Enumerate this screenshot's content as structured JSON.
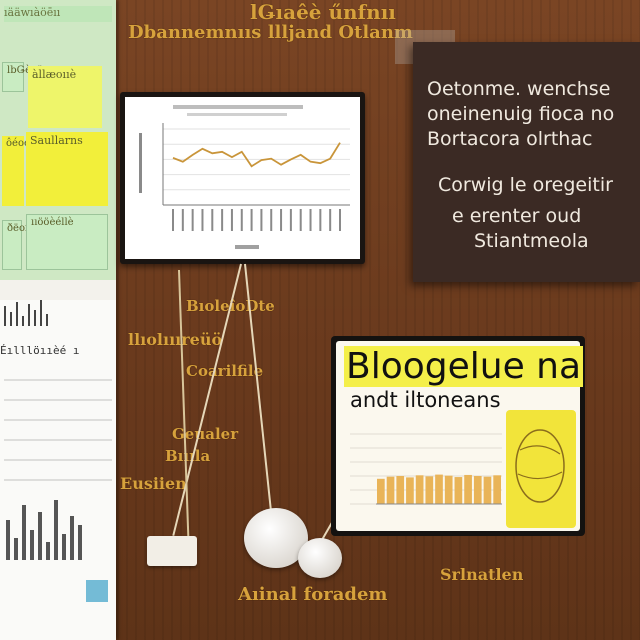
{
  "wall_scribbles": [
    "lǤıaêè űnfnıı",
    "Dbannemnııs llljand Otlanm",
    "BıoleîoDte",
    "llıolıııreüö",
    "Coarilfile",
    "Geualer",
    "Bıııla",
    "Eusiien",
    "Srlnatlen",
    "Aıinal foradem"
  ],
  "left_panel": {
    "title": "ıääwıàöēıı",
    "notes": [
      "lbǤèeë",
      "àllæoııè",
      "ôéoéııııè",
      "Saullarns",
      "ðëoıııèö",
      "ııööèéllè"
    ],
    "sheet_heading": "Éılllöııèé ı"
  },
  "chart_card": {
    "chart_data": {
      "type": "line",
      "title": "",
      "xlabel": "",
      "ylabel": "",
      "x": [
        1,
        2,
        3,
        4,
        5,
        6,
        7,
        8,
        9,
        10,
        11,
        12,
        13,
        14,
        15,
        16,
        17,
        18
      ],
      "values": [
        62,
        57,
        66,
        74,
        68,
        70,
        63,
        70,
        51,
        59,
        61,
        53,
        60,
        66,
        57,
        55,
        61,
        82
      ],
      "ylim": [
        0,
        100
      ],
      "grid": true,
      "line_color": "#c9953a"
    }
  },
  "dark_card": {
    "lines": [
      "Oetonme. wenchse",
      "oneinenuig fioca no",
      "Bortacora olrthac",
      "Corwig le oregeitir",
      "e erenter oud",
      "Stiantmeola"
    ]
  },
  "bright_card": {
    "title": "Bloogelue na",
    "subtitle": "andt iltoneans",
    "mini_chart": {
      "type": "bar",
      "values": [
        72,
        78,
        80,
        76,
        82,
        79,
        84,
        81,
        77,
        83,
        80,
        78,
        82
      ],
      "ylim": [
        0,
        100
      ],
      "bar_color": "#e9b458"
    }
  },
  "colors": {
    "wall": "#6b3a1e",
    "scribble": "#d7a23c",
    "dark_card": "#3b2a24",
    "highlight_yellow": "#f4ef49"
  }
}
